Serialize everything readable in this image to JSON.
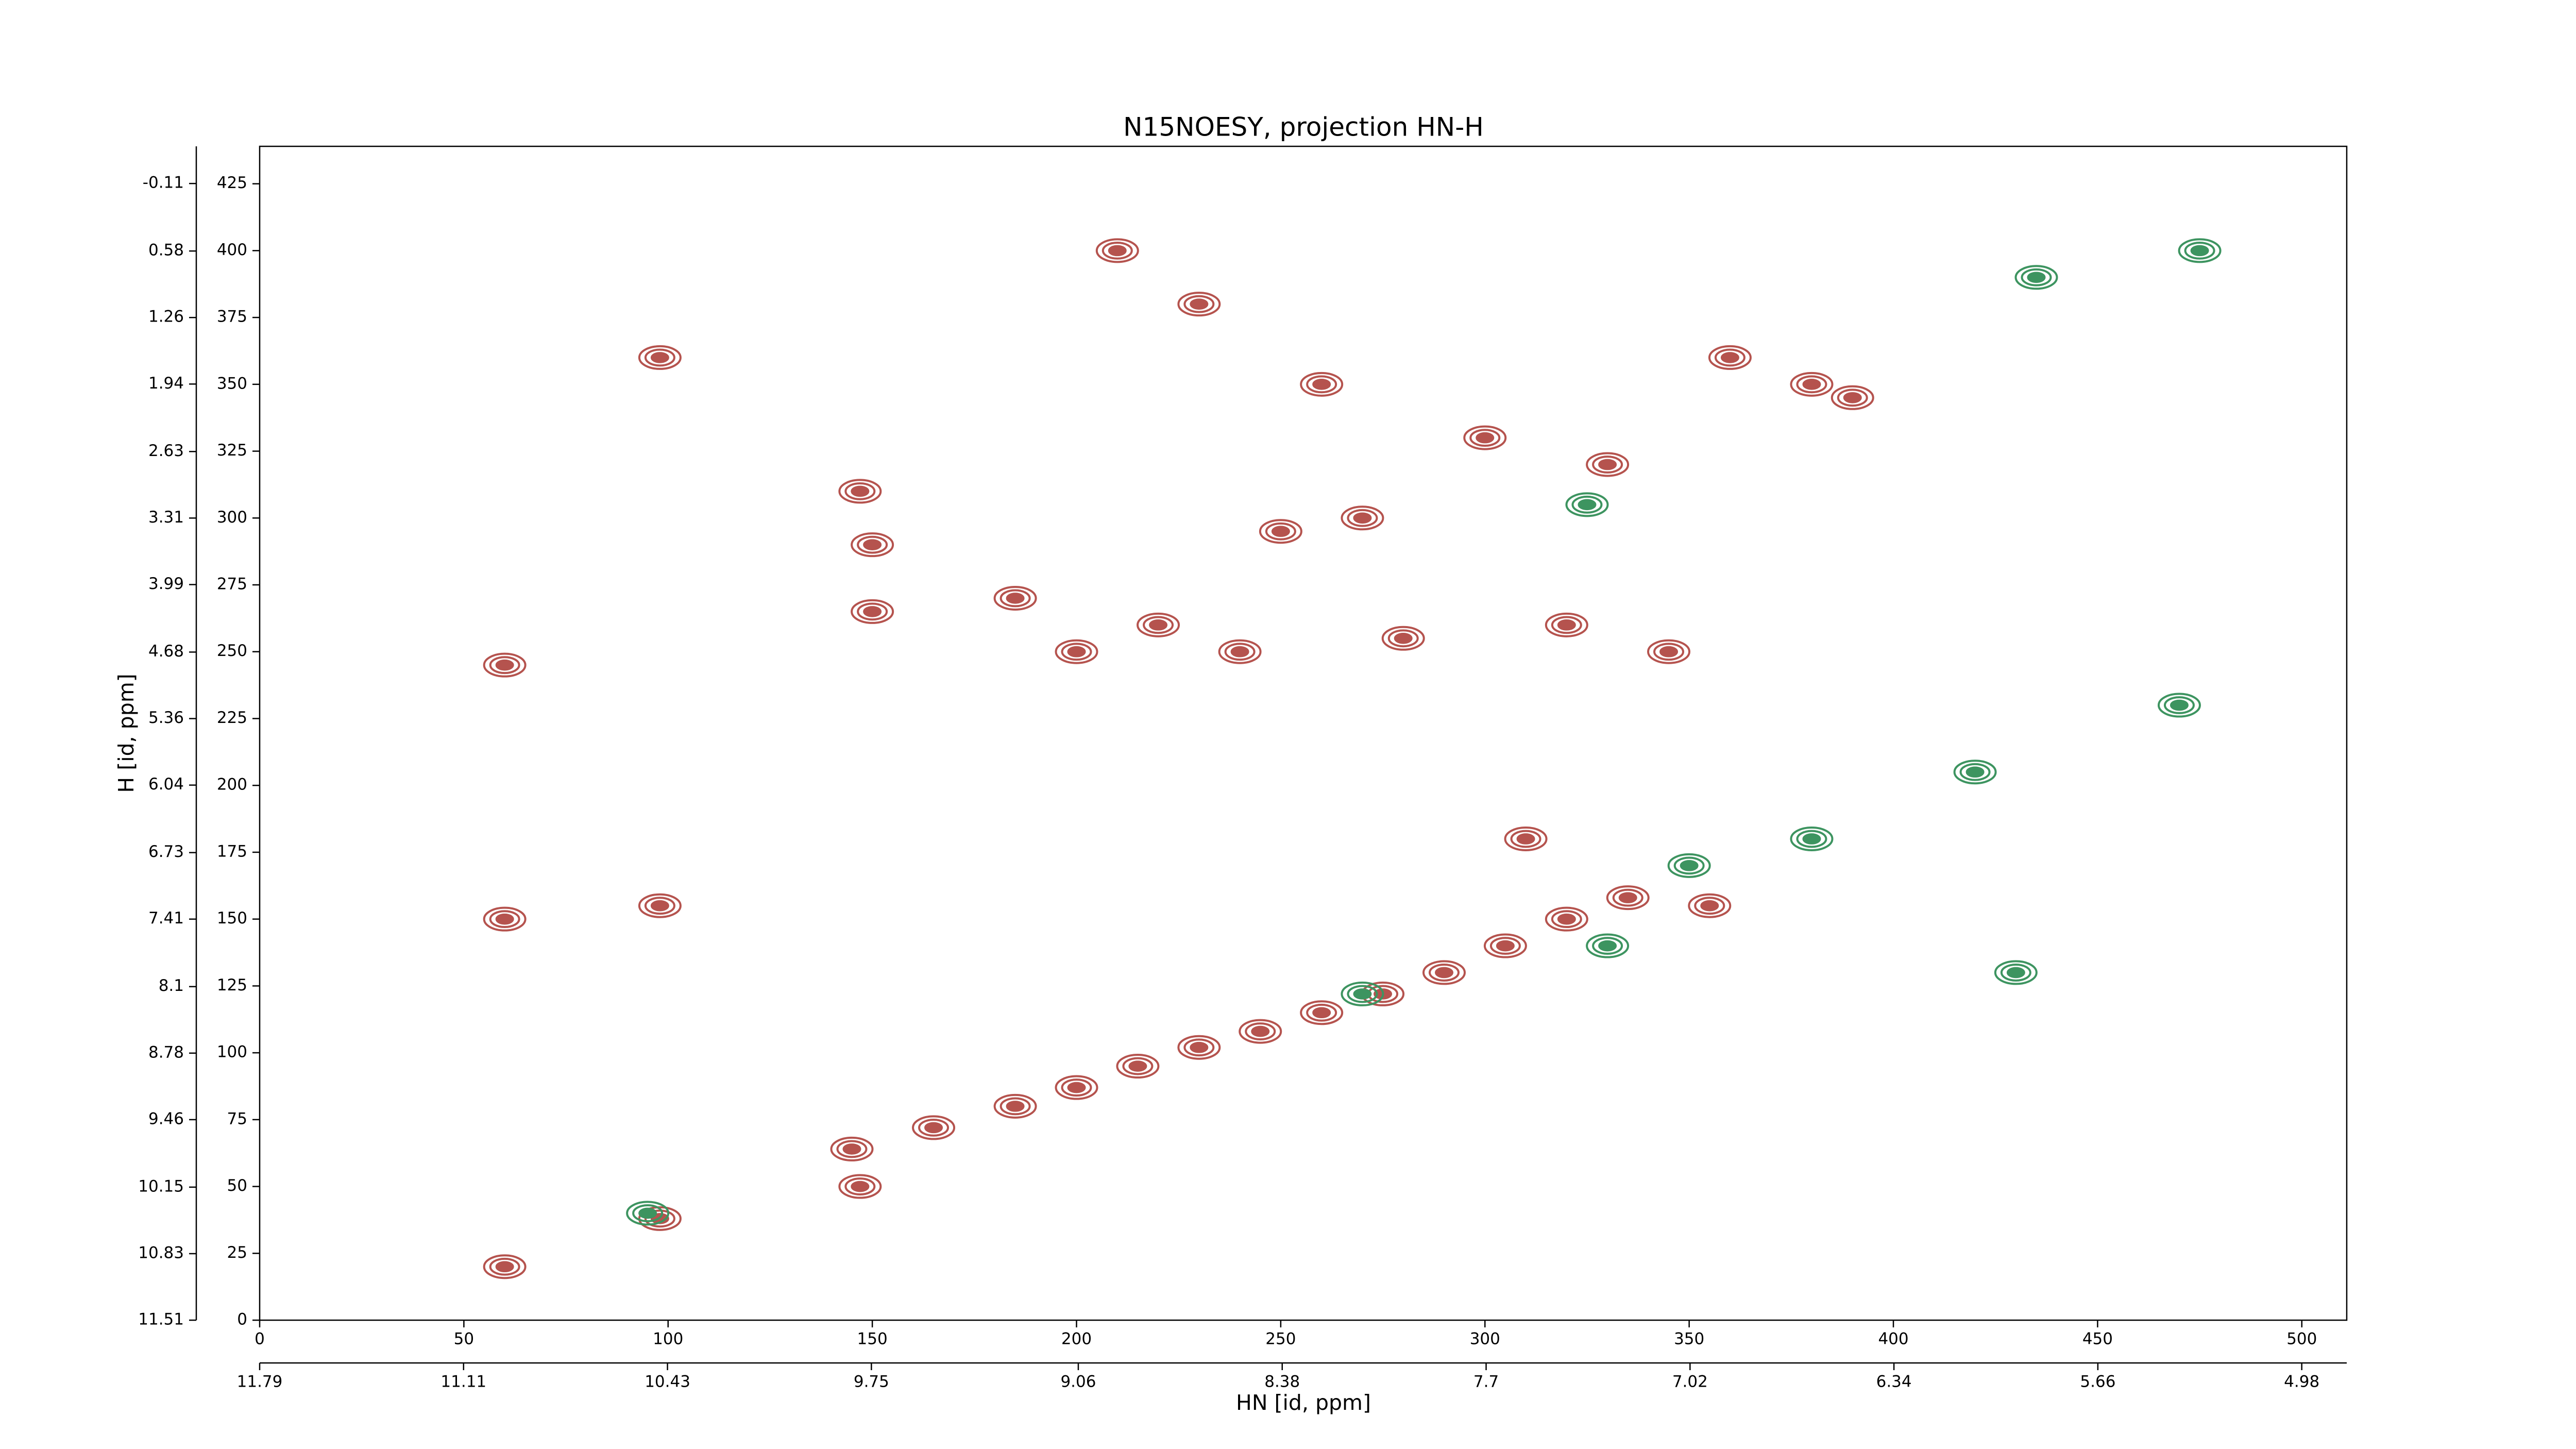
{
  "chart_data": {
    "type": "contour",
    "title": "N15NOESY, projection HN-H",
    "xlabel": "HN [id, ppm]",
    "ylabel": "H [id, ppm]",
    "xlim": [
      0,
      511
    ],
    "xticks": [
      0,
      50,
      100,
      150,
      200,
      250,
      300,
      350,
      400,
      450,
      500
    ],
    "ylim": [
      0,
      439
    ],
    "yticks": [
      0,
      25,
      50,
      75,
      100,
      125,
      150,
      175,
      200,
      225,
      250,
      275,
      300,
      325,
      350,
      375,
      400,
      425
    ],
    "x2lim": [
      11.79,
      4.83
    ],
    "x2ticks": [
      11.79,
      11.11,
      10.43,
      9.75,
      9.06,
      8.38,
      7.7,
      7.02,
      6.34,
      5.66,
      4.98
    ],
    "y2lim": [
      11.51,
      -0.49
    ],
    "y2ticks": [
      11.51,
      10.83,
      10.15,
      9.46,
      8.78,
      8.1,
      7.41,
      6.73,
      6.04,
      5.36,
      4.68,
      3.99,
      3.31,
      2.63,
      1.94,
      1.26,
      0.58,
      -0.11
    ],
    "positive_color": "#b5534e",
    "negative_color": "#3d9460",
    "positive_peaks": {
      "x": [
        145,
        165,
        185,
        200,
        215,
        230,
        245,
        260,
        275,
        290,
        305,
        320,
        335,
        98,
        98,
        98,
        60,
        60,
        60,
        147,
        147,
        150,
        150,
        210,
        230,
        260,
        300,
        330,
        360,
        380,
        220,
        240,
        280,
        320,
        345,
        390,
        200,
        185,
        250,
        270,
        310,
        355
      ],
      "y": [
        64,
        72,
        80,
        87,
        95,
        102,
        108,
        115,
        122,
        130,
        140,
        150,
        158,
        38,
        155,
        360,
        20,
        150,
        245,
        50,
        310,
        265,
        290,
        400,
        380,
        350,
        330,
        320,
        360,
        350,
        260,
        250,
        255,
        260,
        250,
        345,
        250,
        270,
        295,
        300,
        180,
        155
      ]
    },
    "negative_peaks": {
      "x": [
        95,
        330,
        350,
        380,
        420,
        430,
        435,
        470,
        475,
        325,
        270
      ],
      "y": [
        40,
        140,
        170,
        180,
        205,
        130,
        390,
        230,
        400,
        305,
        122
      ]
    }
  }
}
